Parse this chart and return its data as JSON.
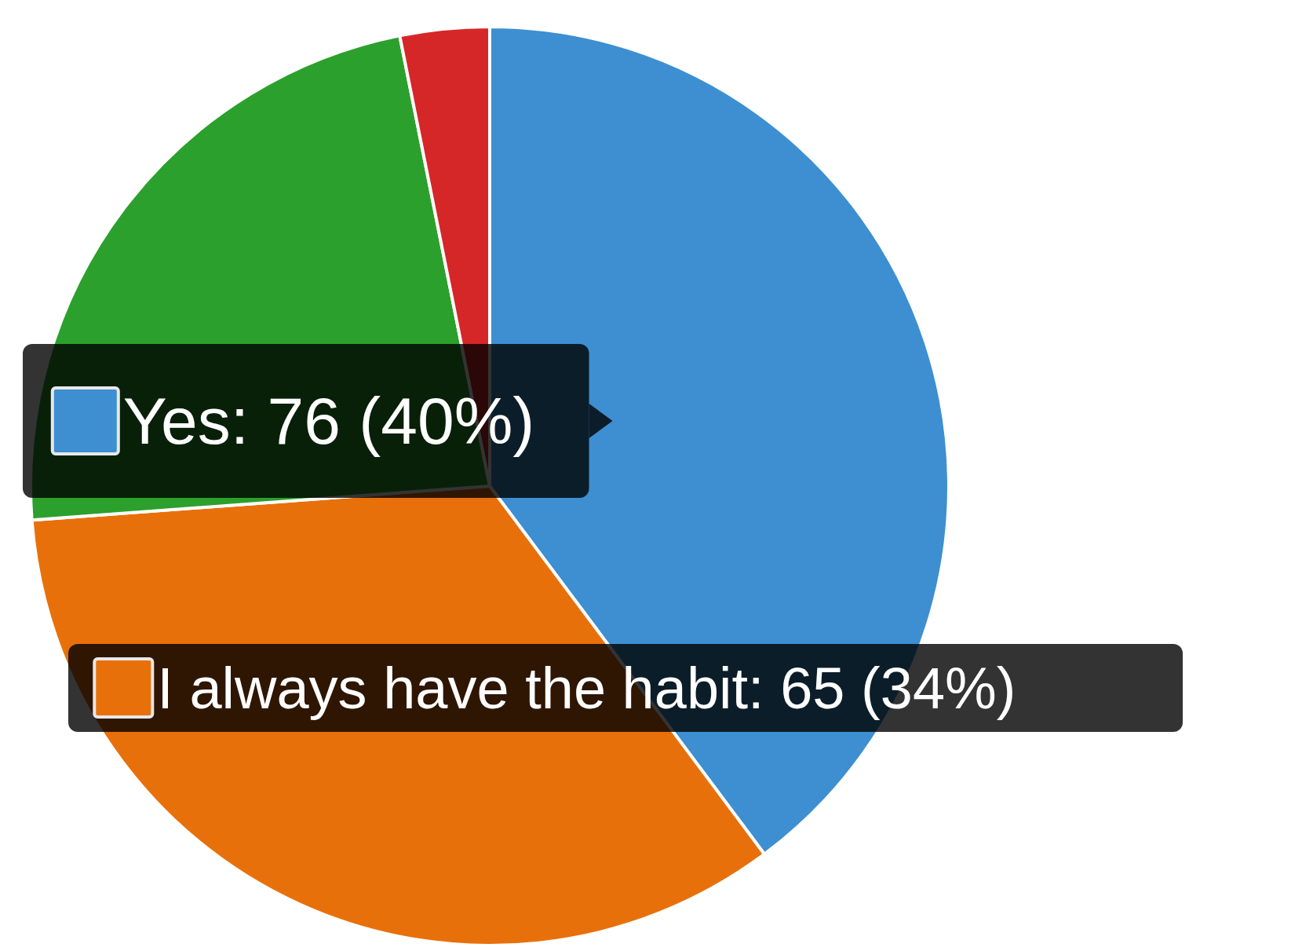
{
  "chart_data": {
    "type": "pie",
    "categories": [
      "Yes",
      "I always have the habit",
      null,
      null
    ],
    "values": [
      76,
      65,
      44,
      6
    ],
    "colors": [
      "#3d8fd1",
      "#e8700a",
      "#2ca02c",
      "#d62728"
    ],
    "value_labels": [
      "76 (40%)",
      "65 (34%)",
      null,
      null
    ],
    "legend": "left"
  }
}
